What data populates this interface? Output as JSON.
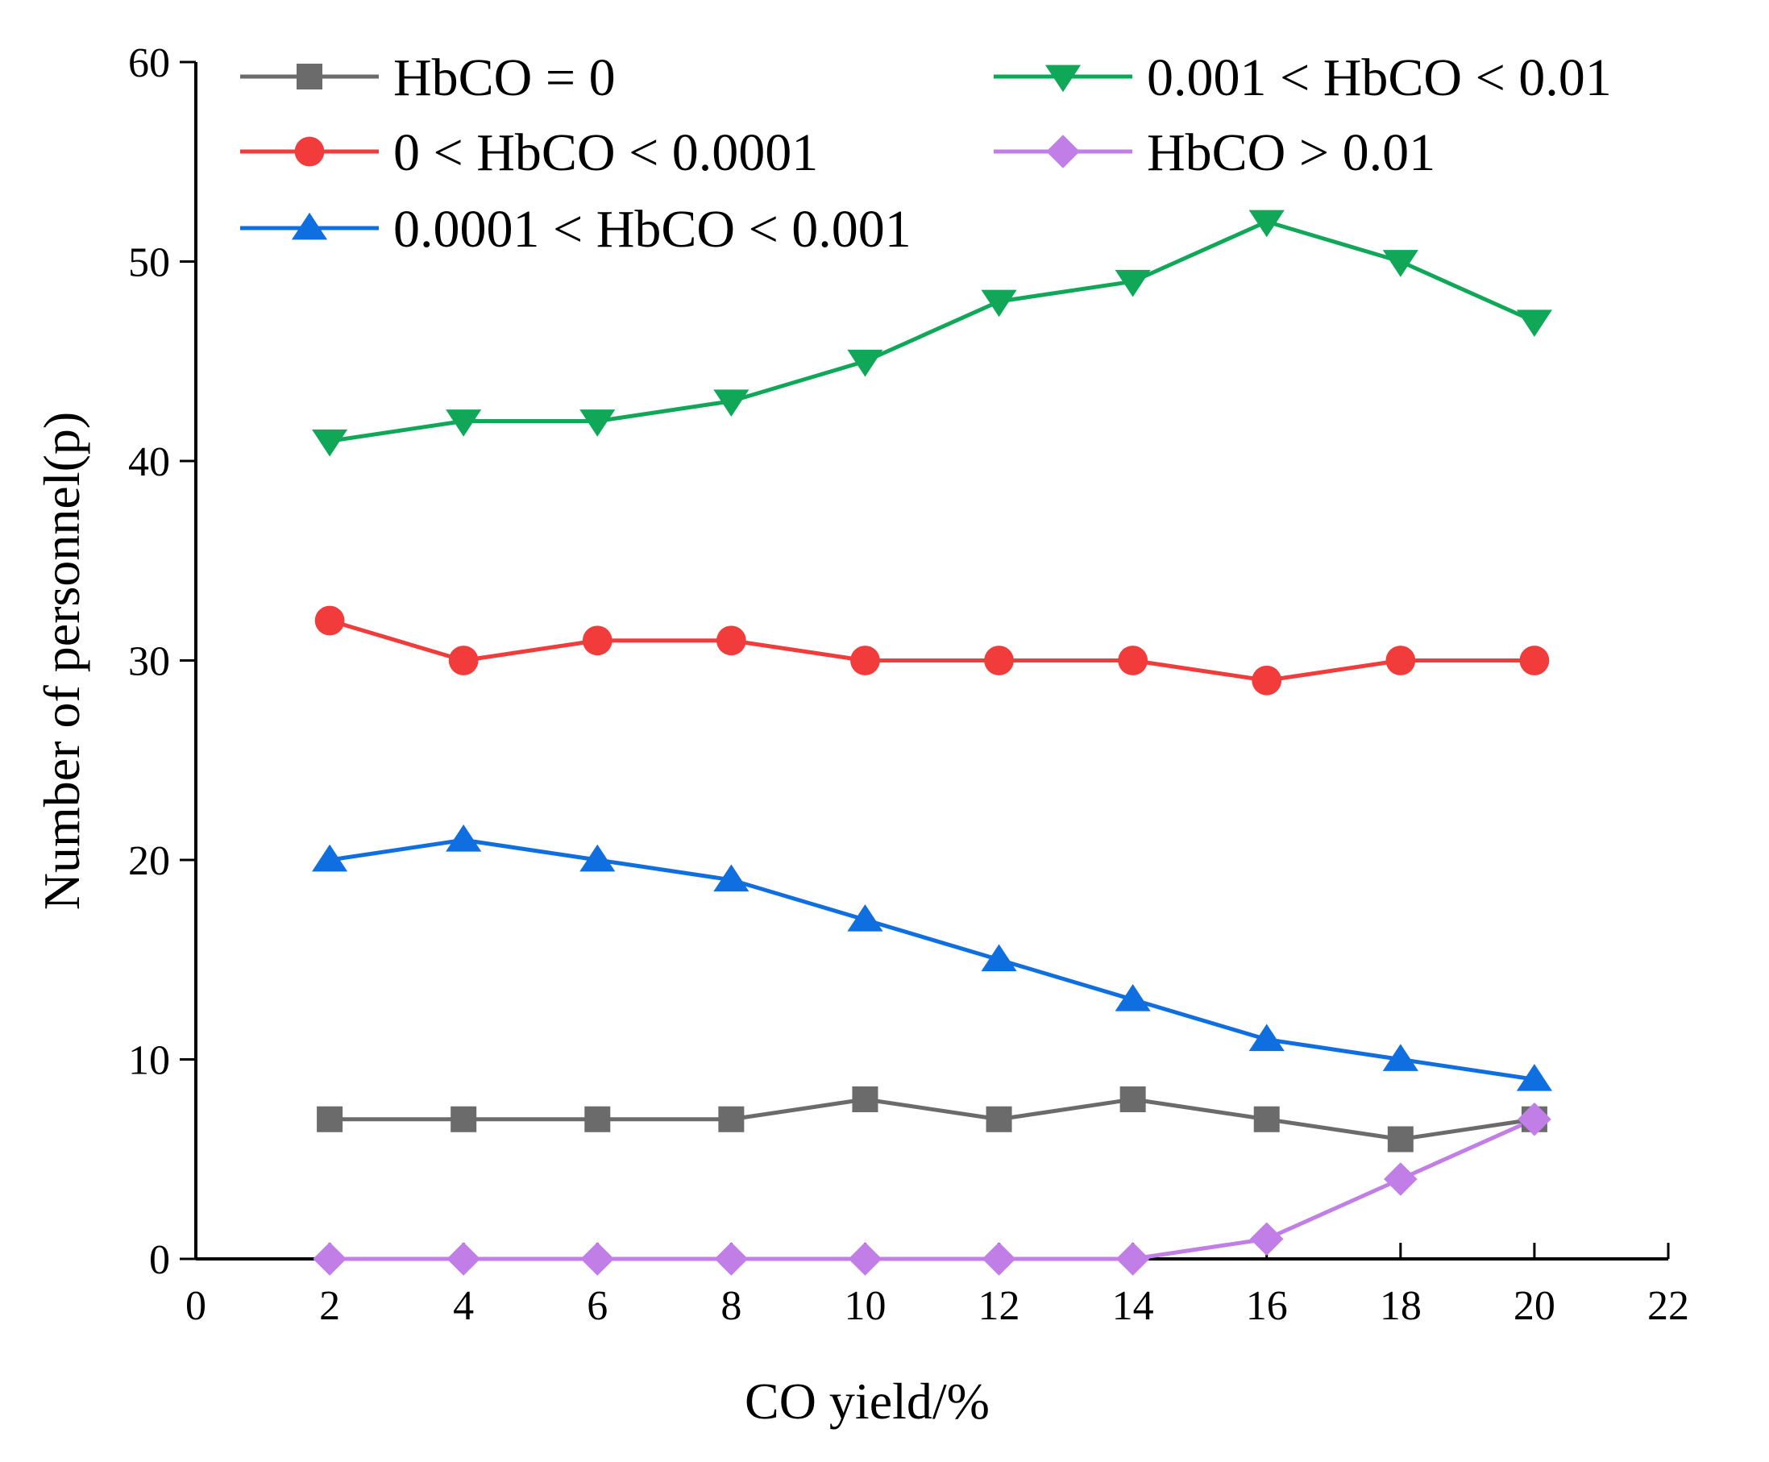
{
  "chart_data": {
    "type": "line",
    "title": "",
    "xlabel": "CO yield/%",
    "ylabel": "Number of personnel(p)",
    "xlim": [
      0,
      22
    ],
    "ylim": [
      0,
      60
    ],
    "xticks": [
      0,
      2,
      4,
      6,
      8,
      10,
      12,
      14,
      16,
      18,
      20,
      22
    ],
    "yticks": [
      0,
      10,
      20,
      30,
      40,
      50,
      60
    ],
    "xtick_labels": [
      "0",
      "2",
      "4",
      "6",
      "8",
      "10",
      "12",
      "14",
      "16",
      "18",
      "20",
      "22"
    ],
    "ytick_labels": [
      "0",
      "10",
      "20",
      "30",
      "40",
      "50",
      "60"
    ],
    "grid": false,
    "legend_position": "top",
    "x": [
      2,
      4,
      6,
      8,
      10,
      12,
      14,
      16,
      18,
      20
    ],
    "series": [
      {
        "name": "HbCO = 0",
        "color": "#6b6b6b",
        "marker": "square",
        "values": [
          7,
          7,
          7,
          7,
          8,
          7,
          8,
          7,
          6,
          7
        ]
      },
      {
        "name": "0 < HbCO < 0.0001",
        "color": "#f23b3b",
        "marker": "circle",
        "values": [
          32,
          30,
          31,
          31,
          30,
          30,
          30,
          29,
          30,
          30
        ]
      },
      {
        "name": "0.0001 < HbCO < 0.001",
        "color": "#0f6fe0",
        "marker": "triangle-up",
        "values": [
          20,
          21,
          20,
          19,
          17,
          15,
          13,
          11,
          10,
          9
        ]
      },
      {
        "name": "0.001 < HbCO < 0.01",
        "color": "#10a858",
        "marker": "triangle-down",
        "values": [
          41,
          42,
          42,
          43,
          45,
          48,
          49,
          52,
          50,
          47
        ]
      },
      {
        "name": "HbCO > 0.01",
        "color": "#c07ee6",
        "marker": "diamond",
        "values": [
          0,
          0,
          0,
          0,
          0,
          0,
          0,
          1,
          4,
          7
        ]
      }
    ]
  }
}
